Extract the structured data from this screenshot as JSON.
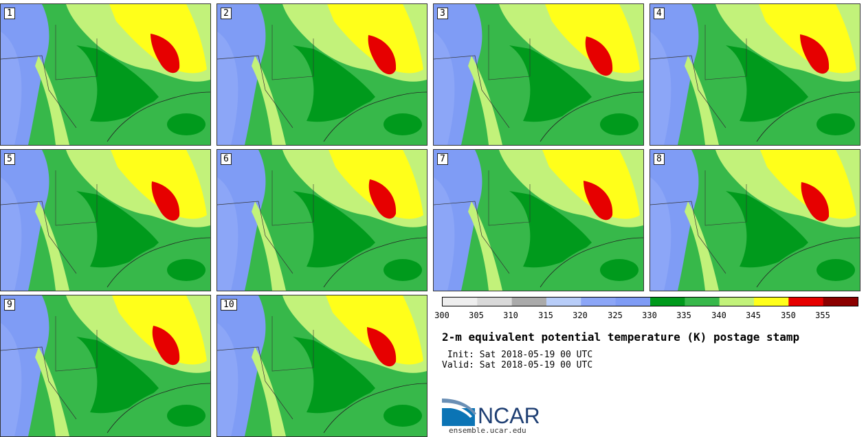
{
  "panels": [
    "1",
    "2",
    "3",
    "4",
    "5",
    "6",
    "7",
    "8",
    "9",
    "10"
  ],
  "colorbar": {
    "colors": [
      "#eeeeee",
      "#d9d9d9",
      "#aaaaaa",
      "#b8cdf8",
      "#8ca6f7",
      "#7f9cf5",
      "#009a1c",
      "#37b84a",
      "#c2f27a",
      "#ffff1a",
      "#e60000",
      "#8b0000"
    ],
    "labels": [
      "300",
      "305",
      "310",
      "315",
      "320",
      "325",
      "330",
      "335",
      "340",
      "345",
      "350",
      "355"
    ]
  },
  "title": "2-m equivalent potential temperature (K) postage stamp",
  "init": " Init: Sat 2018-05-19 00 UTC",
  "valid": "Valid: Sat 2018-05-19 00 UTC",
  "logo": {
    "text": "NCAR",
    "url": "ensemble.ucar.edu"
  }
}
